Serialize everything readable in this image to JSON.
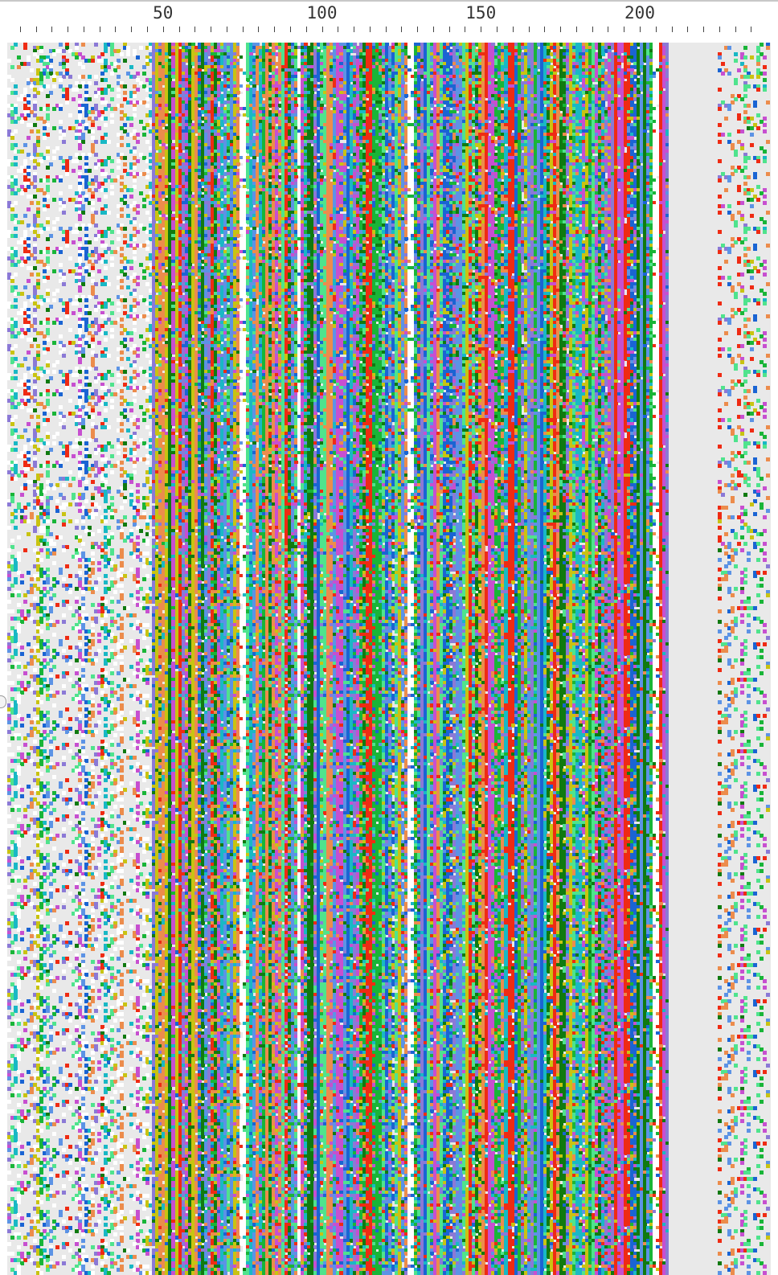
{
  "ruler": {
    "labels": [
      "50",
      "100",
      "150",
      "200"
    ],
    "positions": [
      50,
      100,
      150,
      200
    ],
    "first_tick": 5,
    "last_tick": 236,
    "tick_step": 5
  },
  "alignment": {
    "columns": 236,
    "rows": 380,
    "background": "#e9e9e9",
    "gap_color": "#ffffff",
    "residue_palette": {
      "blue": "#1a64d3",
      "light_blue": "#5c93e5",
      "cyan": "#19b8c5",
      "green": "#19b538",
      "light_green": "#4fe38d",
      "dark_green": "#107a10",
      "red": "#ef2b13",
      "orange": "#ec8c4c",
      "magenta": "#c74fd0",
      "yellow": "#c9c312",
      "violet": "#8b79d6"
    }
  }
}
